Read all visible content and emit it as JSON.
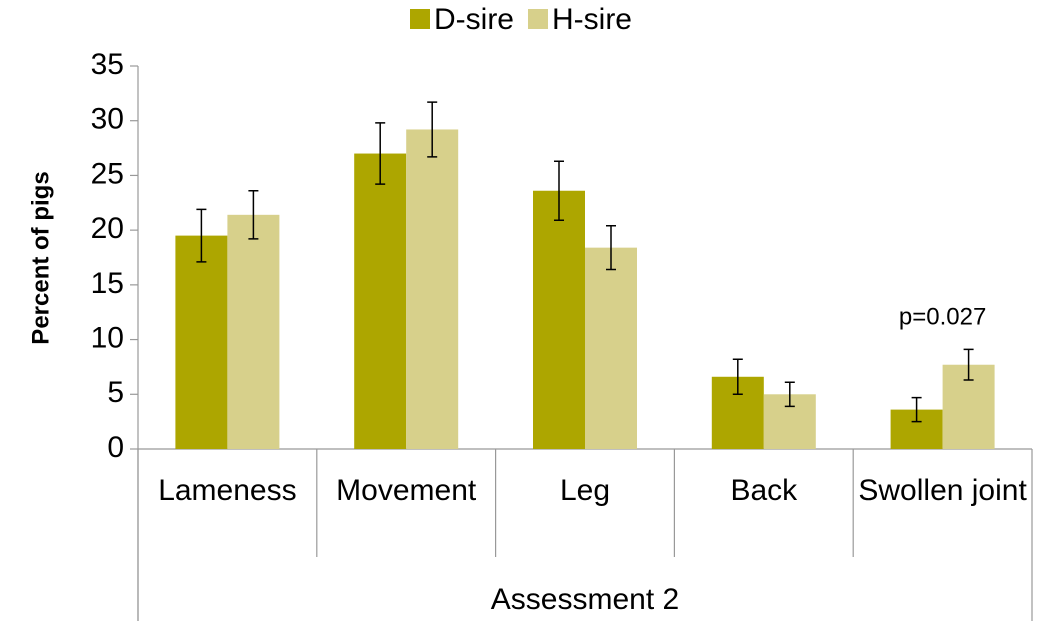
{
  "chart_data": {
    "type": "bar",
    "categories": [
      "Lameness",
      "Movement",
      "Leg",
      "Back",
      "Swollen joint"
    ],
    "group_label": "Assessment 2",
    "ylabel": "Percent of pigs",
    "annotation": "p=0.027",
    "series": [
      {
        "name": "D-sire",
        "color": "#ada600",
        "values": [
          19.5,
          27.0,
          23.6,
          6.6,
          3.6
        ],
        "errors": [
          2.4,
          2.8,
          2.7,
          1.6,
          1.1
        ]
      },
      {
        "name": "H-sire",
        "color": "#d7d08b",
        "values": [
          21.4,
          29.2,
          18.4,
          5.0,
          7.7
        ],
        "errors": [
          2.2,
          2.5,
          2.0,
          1.1,
          1.4
        ]
      }
    ],
    "ylim": [
      0,
      35
    ],
    "yticks": [
      0,
      5,
      10,
      15,
      20,
      25,
      30,
      35
    ],
    "legend": "top"
  }
}
